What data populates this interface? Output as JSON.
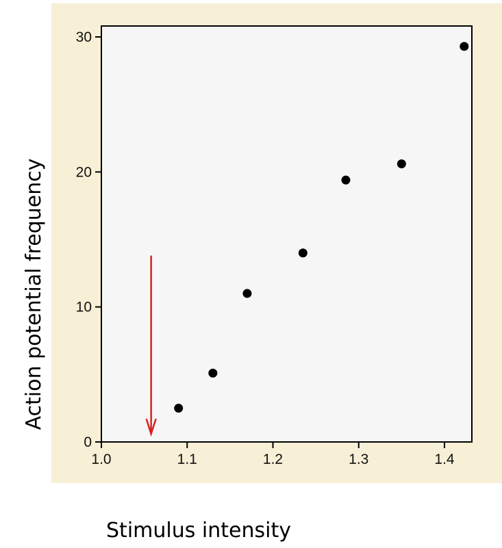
{
  "colors": {
    "panel_background": "#f7efd6",
    "plot_background": "#f6f6f6",
    "point": "#000000",
    "arrow": "#d8211c",
    "axis": "#000000"
  },
  "chart_data": {
    "type": "scatter",
    "title": "",
    "xlabel": "Stimulus intensity",
    "ylabel": "Action potential frequency",
    "xlim": [
      1.0,
      1.45
    ],
    "ylim": [
      0,
      30
    ],
    "x_ticks": [
      1.0,
      1.1,
      1.2,
      1.3,
      1.4
    ],
    "x_tick_labels": [
      "1.0",
      "1.1",
      "1.2",
      "1.3",
      "1.4"
    ],
    "y_ticks": [
      0,
      10,
      20,
      30
    ],
    "y_tick_labels": [
      "0",
      "10",
      "20",
      "30"
    ],
    "grid": false,
    "legend": "none",
    "series": [
      {
        "x": [
          1.09,
          1.13,
          1.17,
          1.235,
          1.285,
          1.35,
          1.423
        ],
        "y": [
          2.5,
          5.1,
          11.0,
          14.0,
          19.4,
          20.6,
          29.3
        ]
      }
    ],
    "annotations": [
      {
        "type": "arrow",
        "x": 1.058,
        "y_from": 13.8,
        "y_to": 0.6,
        "color": "#d8211c"
      }
    ]
  }
}
